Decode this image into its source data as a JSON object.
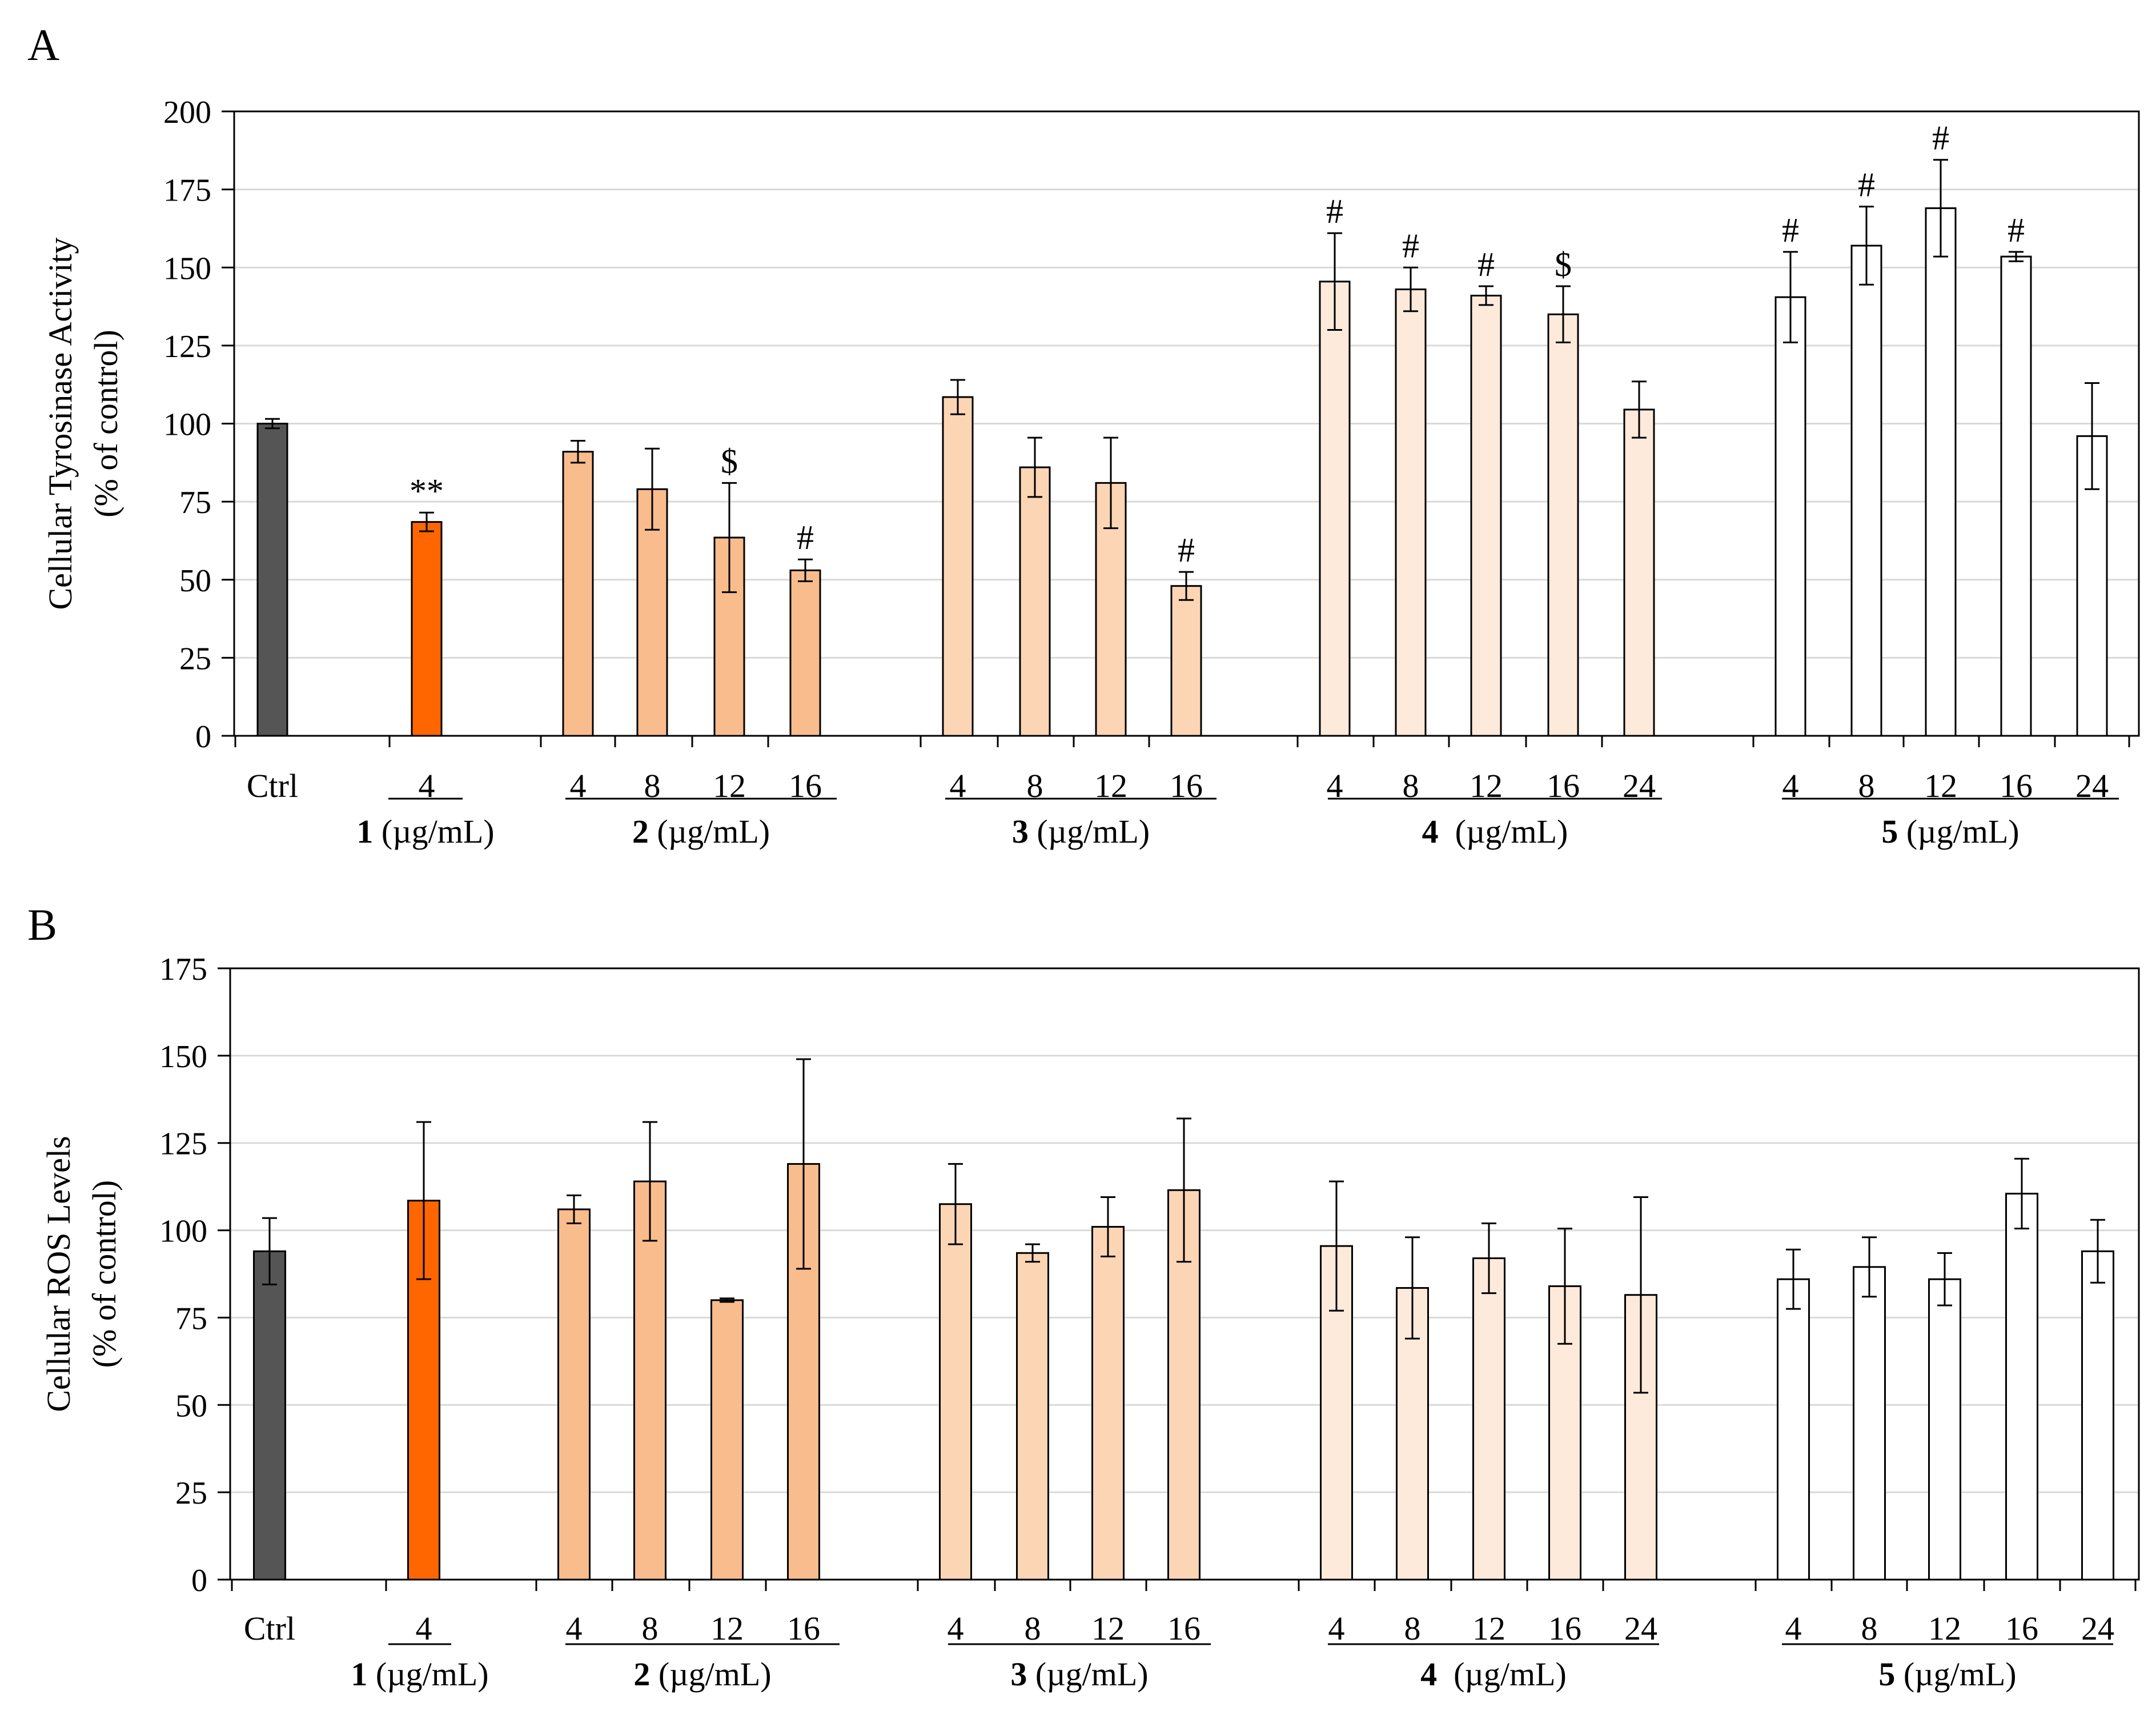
{
  "chart_data": [
    {
      "panel_label": "A",
      "type": "bar",
      "ylabel_lines": [
        "Cellular Tyrosinase Activity",
        "(% of control)"
      ],
      "ylim": [
        0,
        200
      ],
      "yticks": [
        0,
        25,
        50,
        75,
        100,
        125,
        150,
        175,
        200
      ],
      "grid": true,
      "groups": [
        {
          "id": "ctrl",
          "bold": "",
          "unit": "",
          "color": "#555555",
          "bars": [
            {
              "x": "Ctrl",
              "value": 100,
              "err": 1.5,
              "mark": ""
            }
          ]
        },
        {
          "id": "1",
          "bold": "1",
          "unit": " (µg/mL)",
          "color": "#FF6600",
          "bars": [
            {
              "x": "4",
              "value": 68.5,
              "err": 3,
              "mark": "**"
            }
          ]
        },
        {
          "id": "2",
          "bold": "2",
          "unit": " (µg/mL)",
          "color": "#F9BC8D",
          "bars": [
            {
              "x": "4",
              "value": 91,
              "err": 3.5,
              "mark": ""
            },
            {
              "x": "8",
              "value": 79,
              "err": 13,
              "mark": ""
            },
            {
              "x": "12",
              "value": 63.5,
              "err": 17.5,
              "mark": "$"
            },
            {
              "x": "16",
              "value": 53,
              "err": 3.5,
              "mark": "#"
            }
          ]
        },
        {
          "id": "3",
          "bold": "3",
          "unit": " (µg/mL)",
          "color": "#FCD5B4",
          "bars": [
            {
              "x": "4",
              "value": 108.5,
              "err": 5.5,
              "mark": ""
            },
            {
              "x": "8",
              "value": 86,
              "err": 9.5,
              "mark": ""
            },
            {
              "x": "12",
              "value": 81,
              "err": 14.5,
              "mark": ""
            },
            {
              "x": "16",
              "value": 48,
              "err": 4.5,
              "mark": "#"
            }
          ]
        },
        {
          "id": "4",
          "bold": "4",
          "unit": "  (µg/mL)",
          "color": "#FEEADA",
          "bars": [
            {
              "x": "4",
              "value": 145.5,
              "err": 15.5,
              "mark": "#"
            },
            {
              "x": "8",
              "value": 143,
              "err": 7,
              "mark": "#"
            },
            {
              "x": "12",
              "value": 141,
              "err": 3,
              "mark": "#"
            },
            {
              "x": "16",
              "value": 135,
              "err": 9,
              "mark": "$"
            },
            {
              "x": "24",
              "value": 104.5,
              "err": 9,
              "mark": ""
            }
          ]
        },
        {
          "id": "5",
          "bold": "5",
          "unit": " (µg/mL)",
          "color": "#FFFFFF",
          "bars": [
            {
              "x": "4",
              "value": 140.5,
              "err": 14.5,
              "mark": "#"
            },
            {
              "x": "8",
              "value": 157,
              "err": 12.5,
              "mark": "#"
            },
            {
              "x": "12",
              "value": 169,
              "err": 15.5,
              "mark": "#"
            },
            {
              "x": "16",
              "value": 153.5,
              "err": 1.5,
              "mark": "#"
            },
            {
              "x": "24",
              "value": 96,
              "err": 17,
              "mark": ""
            }
          ]
        }
      ]
    },
    {
      "panel_label": "B",
      "type": "bar",
      "ylabel_lines": [
        "Cellular ROS Levels",
        "(% of control)"
      ],
      "ylim": [
        0,
        175
      ],
      "yticks": [
        0,
        25,
        50,
        75,
        100,
        125,
        150,
        175
      ],
      "grid": true,
      "groups": [
        {
          "id": "ctrl",
          "bold": "",
          "unit": "",
          "color": "#555555",
          "bars": [
            {
              "x": "Ctrl",
              "value": 94,
              "err": 9.5,
              "mark": ""
            }
          ]
        },
        {
          "id": "1",
          "bold": "1",
          "unit": " (µg/mL)",
          "color": "#FF6600",
          "bars": [
            {
              "x": "4",
              "value": 108.5,
              "err": 22.5,
              "mark": ""
            }
          ]
        },
        {
          "id": "2",
          "bold": "2",
          "unit": " (µg/mL)",
          "color": "#F9BC8D",
          "bars": [
            {
              "x": "4",
              "value": 106,
              "err": 4,
              "mark": ""
            },
            {
              "x": "8",
              "value": 114,
              "err": 17,
              "mark": ""
            },
            {
              "x": "12",
              "value": 80,
              "err": 0.5,
              "mark": ""
            },
            {
              "x": "16",
              "value": 119,
              "err": 30,
              "mark": ""
            }
          ]
        },
        {
          "id": "3",
          "bold": "3",
          "unit": " (µg/mL)",
          "color": "#FCD5B4",
          "bars": [
            {
              "x": "4",
              "value": 107.5,
              "err": 11.5,
              "mark": ""
            },
            {
              "x": "8",
              "value": 93.5,
              "err": 2.5,
              "mark": ""
            },
            {
              "x": "12",
              "value": 101,
              "err": 8.5,
              "mark": ""
            },
            {
              "x": "16",
              "value": 111.5,
              "err": 20.5,
              "mark": ""
            }
          ]
        },
        {
          "id": "4",
          "bold": "4",
          "unit": "  (µg/mL)",
          "color": "#FEEADA",
          "bars": [
            {
              "x": "4",
              "value": 95.5,
              "err": 18.5,
              "mark": ""
            },
            {
              "x": "8",
              "value": 83.5,
              "err": 14.5,
              "mark": ""
            },
            {
              "x": "12",
              "value": 92,
              "err": 10,
              "mark": ""
            },
            {
              "x": "16",
              "value": 84,
              "err": 16.5,
              "mark": ""
            },
            {
              "x": "24",
              "value": 81.5,
              "err": 28,
              "mark": ""
            }
          ]
        },
        {
          "id": "5",
          "bold": "5",
          "unit": " (µg/mL)",
          "color": "#FFFFFF",
          "bars": [
            {
              "x": "4",
              "value": 86,
              "err": 8.5,
              "mark": ""
            },
            {
              "x": "8",
              "value": 89.5,
              "err": 8.5,
              "mark": ""
            },
            {
              "x": "12",
              "value": 86,
              "err": 7.5,
              "mark": ""
            },
            {
              "x": "16",
              "value": 110.5,
              "err": 10,
              "mark": ""
            },
            {
              "x": "24",
              "value": 94,
              "err": 9,
              "mark": ""
            }
          ]
        }
      ]
    }
  ]
}
